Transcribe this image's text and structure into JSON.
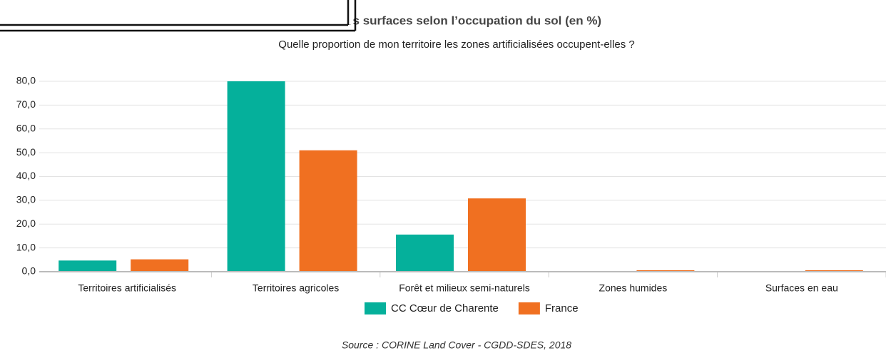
{
  "chart_data": {
    "type": "bar",
    "title": "Part des surfaces selon l’occupation du sol (en %)",
    "subtitle": "Quelle proportion de mon territoire les zones artificialisées occupent-elles ?",
    "source": "Source : CORINE Land Cover - CGDD-SDES, 2018",
    "categories": [
      "Territoires artificialisés",
      "Territoires agricoles",
      "Forêt et milieux semi-naturels",
      "Zones humides",
      "Surfaces en eau"
    ],
    "series": [
      {
        "name": "CC Cœur de Charente",
        "color": "#05b09b",
        "values": [
          4.7,
          80.0,
          15.6,
          0,
          0
        ]
      },
      {
        "name": "France",
        "color": "#f07021",
        "values": [
          5.2,
          51.0,
          30.8,
          0.6,
          0.6
        ]
      }
    ],
    "ylim": [
      0,
      80
    ],
    "yticks": [
      {
        "value": 0,
        "label": "0,0"
      },
      {
        "value": 10,
        "label": "10,0"
      },
      {
        "value": 20,
        "label": "20,0"
      },
      {
        "value": 30,
        "label": "30,0"
      },
      {
        "value": 40,
        "label": "40,0"
      },
      {
        "value": 50,
        "label": "50,0"
      },
      {
        "value": 60,
        "label": "60,0"
      },
      {
        "value": 70,
        "label": "70,0"
      },
      {
        "value": 80,
        "label": "80,0"
      }
    ],
    "grid": true
  }
}
